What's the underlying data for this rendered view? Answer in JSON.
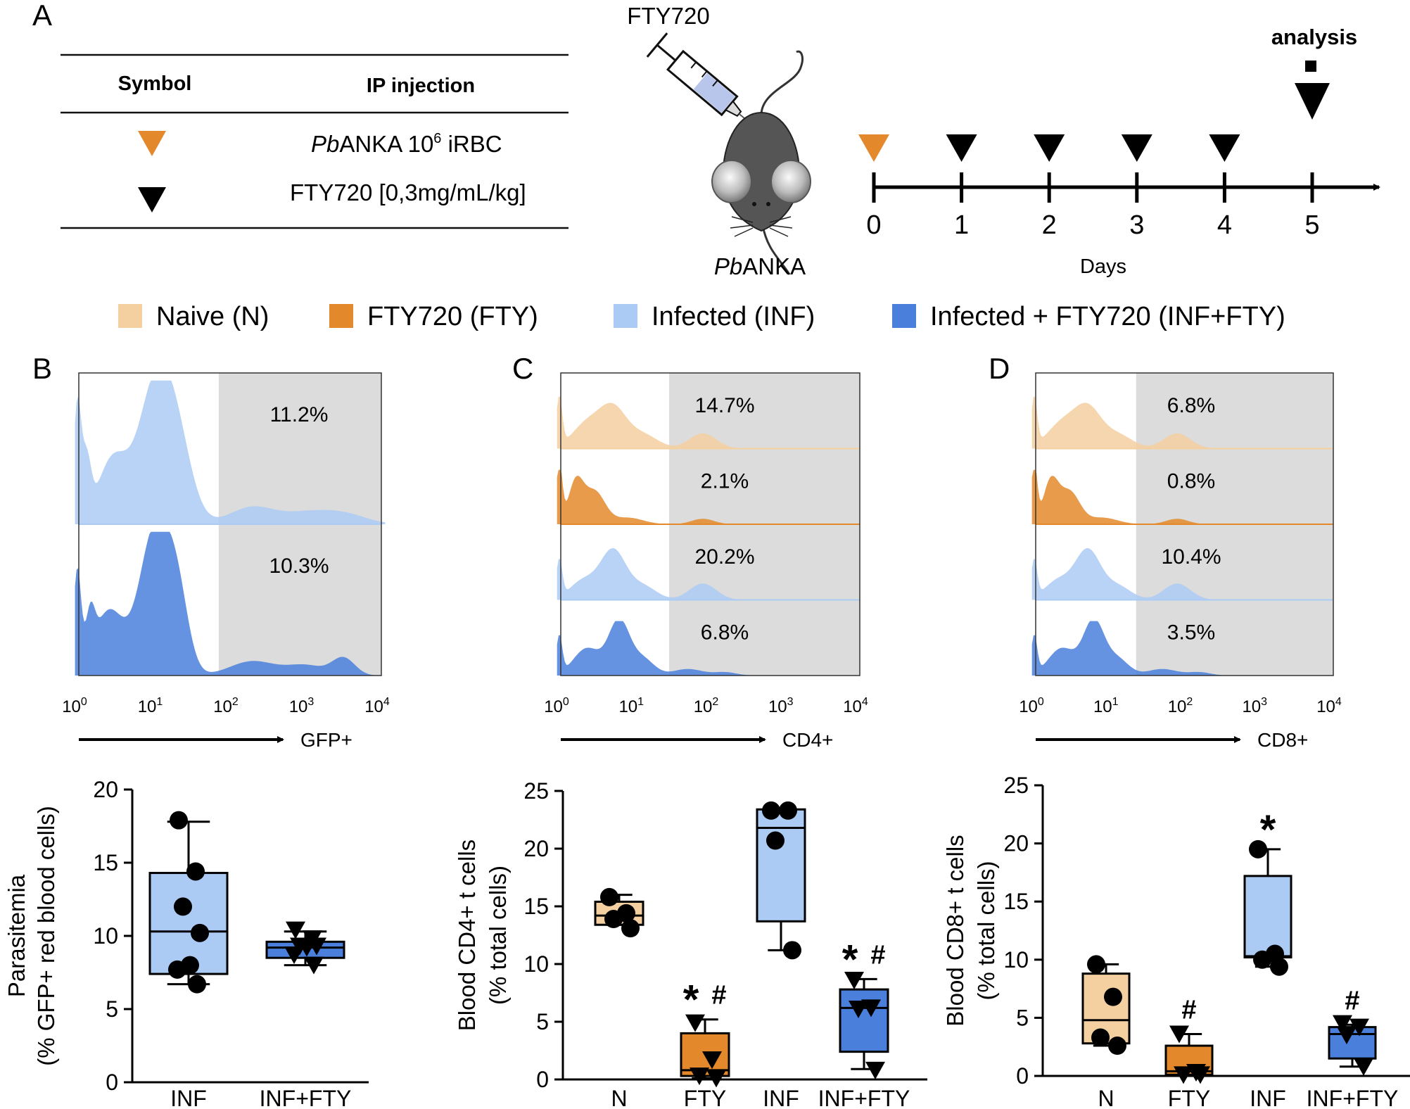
{
  "colors": {
    "naive": "#f4cfa0",
    "fty": "#e3892b",
    "inf": "#abcbf4",
    "inffty": "#4a80dc",
    "gate": "#dcdcdc"
  },
  "panelA": {
    "label": "A",
    "table": {
      "col_symbol": "Symbol",
      "col_ip": "IP injection",
      "row1_italic": "Pb",
      "row1_text": "ANKA 10",
      "row1_sup": "6",
      "row1_tail": " iRBC",
      "row2_text": "FTY720 [0,3mg/mL/kg]"
    },
    "syringe_label": "FTY720",
    "mouse_italic": "Pb",
    "mouse_label": "ANKA",
    "timeline": {
      "analysis_label": "analysis",
      "xlabel": "Days",
      "days": [
        "0",
        "1",
        "2",
        "3",
        "4",
        "5"
      ]
    }
  },
  "legend": [
    {
      "label": "Naive (N)",
      "color": "#f4cfa0"
    },
    {
      "label": "FTY720 (FTY)",
      "color": "#e3892b"
    },
    {
      "label": "Infected (INF)",
      "color": "#abcbf4"
    },
    {
      "label": "Infected + FTY720 (INF+FTY)",
      "color": "#4a80dc"
    }
  ],
  "chart_data": [
    {
      "type": "histogram",
      "panel": "B",
      "title": "B",
      "xlabel": "GFP+",
      "xscale": "log",
      "xticks": [
        "10^0",
        "10^1",
        "10^2",
        "10^3",
        "10^4"
      ],
      "gate_start": "10^1.85",
      "series": [
        {
          "name": "Infected (INF)",
          "gated_percent": "11.2%"
        },
        {
          "name": "Infected + FTY720 (INF+FTY)",
          "gated_percent": "10.3%"
        }
      ]
    },
    {
      "type": "histogram",
      "panel": "C",
      "title": "C",
      "xlabel": "CD4+",
      "xscale": "log",
      "xticks": [
        "10^0",
        "10^1",
        "10^2",
        "10^3",
        "10^4"
      ],
      "gate_start": "10^1.45",
      "series": [
        {
          "name": "Naive (N)",
          "gated_percent": "14.7%"
        },
        {
          "name": "FTY720 (FTY)",
          "gated_percent": "2.1%"
        },
        {
          "name": "Infected (INF)",
          "gated_percent": "20.2%"
        },
        {
          "name": "Infected + FTY720 (INF+FTY)",
          "gated_percent": "6.8%"
        }
      ]
    },
    {
      "type": "histogram",
      "panel": "D",
      "title": "D",
      "xlabel": "CD8+",
      "xscale": "log",
      "xticks": [
        "10^0",
        "10^1",
        "10^2",
        "10^3",
        "10^4"
      ],
      "gate_start": "10^1.35",
      "series": [
        {
          "name": "Naive (N)",
          "gated_percent": "6.8%"
        },
        {
          "name": "FTY720 (FTY)",
          "gated_percent": "0.8%"
        },
        {
          "name": "Infected (INF)",
          "gated_percent": "10.4%"
        },
        {
          "name": "Infected + FTY720 (INF+FTY)",
          "gated_percent": "3.5%"
        }
      ]
    },
    {
      "type": "box",
      "panel": "B",
      "ylabel_lines": [
        "Parasitemia",
        "(% GFP+ red blood cells)"
      ],
      "ylim": [
        0,
        20
      ],
      "yticks": [
        0,
        5,
        10,
        15,
        20
      ],
      "groups": [
        {
          "name": "INF",
          "color": "#abcbf4",
          "marker": "circle",
          "q1": 7.4,
          "median": 10.3,
          "q3": 14.3,
          "min": 6.7,
          "max": 17.8,
          "points": [
            17.9,
            14.4,
            12.0,
            10.2,
            8.0,
            7.7,
            6.7
          ],
          "annotation": ""
        },
        {
          "name": "INF+FTY",
          "color": "#4a80dc",
          "marker": "triangle",
          "q1": 8.5,
          "median": 9.2,
          "q3": 9.6,
          "min": 8.0,
          "max": 10.3,
          "points": [
            10.4,
            9.8,
            9.3,
            9.3,
            9.2,
            8.7,
            8.0
          ],
          "annotation": ""
        }
      ]
    },
    {
      "type": "box",
      "panel": "C",
      "ylabel_lines": [
        "Blood CD4+ t cells",
        "(% total cells)"
      ],
      "ylim": [
        0,
        25
      ],
      "yticks": [
        0,
        5,
        10,
        15,
        20,
        25
      ],
      "groups": [
        {
          "name": "N",
          "color": "#f4cfa0",
          "marker": "circle",
          "q1": 13.4,
          "median": 14.2,
          "q3": 15.4,
          "min": 13.4,
          "max": 16.0,
          "points": [
            15.8,
            14.4,
            13.9,
            13.1
          ],
          "annotation": ""
        },
        {
          "name": "FTY",
          "color": "#e3892b",
          "marker": "triangle",
          "q1": 0.3,
          "median": 0.8,
          "q3": 4.0,
          "min": 0.1,
          "max": 5.2,
          "points": [
            4.9,
            1.7,
            0.3,
            0.1
          ],
          "annotation": "*#"
        },
        {
          "name": "INF",
          "color": "#abcbf4",
          "marker": "circle",
          "q1": 13.7,
          "median": 21.8,
          "q3": 23.4,
          "min": 11.2,
          "max": 23.4,
          "points": [
            23.3,
            23.3,
            20.7,
            11.2
          ],
          "annotation": ""
        },
        {
          "name": "INF+FTY",
          "color": "#4a80dc",
          "marker": "triangle",
          "q1": 2.4,
          "median": 6.2,
          "q3": 7.8,
          "min": 0.9,
          "max": 8.7,
          "points": [
            8.6,
            6.2,
            6.1,
            0.8
          ],
          "annotation": "*#"
        }
      ]
    },
    {
      "type": "box",
      "panel": "D",
      "ylabel_lines": [
        "Blood CD8+ t cells",
        "(% total cells)"
      ],
      "ylim": [
        0,
        25
      ],
      "yticks": [
        0,
        5,
        10,
        15,
        20,
        25
      ],
      "groups": [
        {
          "name": "N",
          "color": "#f4cfa0",
          "marker": "circle",
          "q1": 2.8,
          "median": 4.8,
          "q3": 8.8,
          "min": 2.6,
          "max": 9.6,
          "points": [
            9.6,
            6.8,
            3.3,
            2.6
          ],
          "annotation": ""
        },
        {
          "name": "FTY",
          "color": "#e3892b",
          "marker": "triangle",
          "q1": 0.1,
          "median": 0.4,
          "q3": 2.6,
          "min": 0.0,
          "max": 3.6,
          "points": [
            3.6,
            0.3,
            0.1,
            0.1
          ],
          "annotation": "#"
        },
        {
          "name": "INF",
          "color": "#abcbf4",
          "marker": "circle",
          "q1": 10.2,
          "median": 10.3,
          "q3": 17.2,
          "min": 9.4,
          "max": 19.5,
          "points": [
            19.5,
            10.5,
            10.0,
            9.4
          ],
          "annotation": "*"
        },
        {
          "name": "INF+FTY",
          "color": "#4a80dc",
          "marker": "triangle",
          "q1": 1.5,
          "median": 3.6,
          "q3": 4.2,
          "min": 0.8,
          "max": 4.4,
          "points": [
            4.5,
            4.2,
            3.5,
            0.8
          ],
          "annotation": "#"
        }
      ]
    }
  ]
}
